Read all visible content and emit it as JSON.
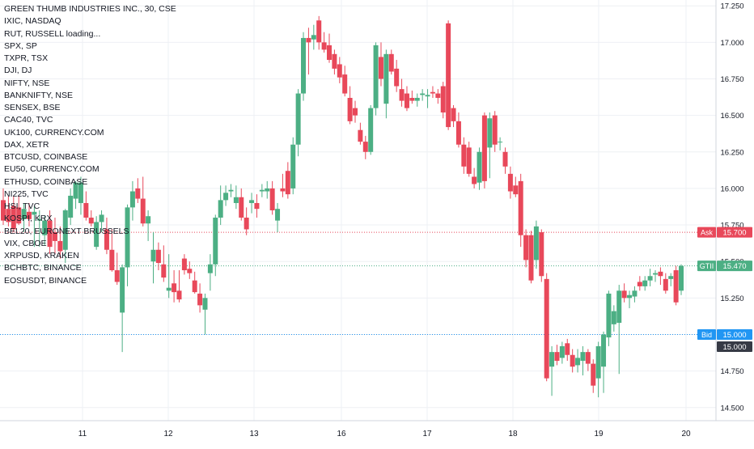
{
  "chart_data": {
    "type": "candlestick",
    "title": "GREEN THUMB INDUSTRIES INC., 30, CSE",
    "symbol": "GTII",
    "interval": "30",
    "exchange": "CSE",
    "x_ticks": [
      "11",
      "12",
      "13",
      "16",
      "17",
      "18",
      "19",
      "20"
    ],
    "y_ticks": [
      "14.500",
      "14.750",
      "15.000",
      "15.250",
      "15.500",
      "15.750",
      "16.000",
      "16.250",
      "16.500",
      "16.750",
      "17.000",
      "17.250"
    ],
    "ylim": [
      14.41,
      17.29
    ],
    "grid": true,
    "colors": {
      "up": "#4caf84",
      "down": "#e8485a",
      "ask": "#e8485a",
      "bid": "#2196f3",
      "last": "#4caf84"
    },
    "price_labels": [
      {
        "label": "Ask",
        "value": "15.700",
        "price": 15.7,
        "color": "#e8485a"
      },
      {
        "label": "GTII",
        "value": "15.470",
        "price": 15.47,
        "color": "#4caf84"
      },
      {
        "label": "Bid",
        "value": "15.000",
        "price": 15.0,
        "color": "#2196f3"
      }
    ],
    "crosshair": {
      "value": "15.000",
      "price": 15.0
    },
    "candles": [
      {
        "o": 15.92,
        "h": 16.0,
        "l": 15.75,
        "c": 15.78
      },
      {
        "o": 15.86,
        "h": 15.95,
        "l": 15.74,
        "c": 15.77
      },
      {
        "o": 15.88,
        "h": 15.95,
        "l": 15.7,
        "c": 15.72
      },
      {
        "o": 15.87,
        "h": 15.95,
        "l": 15.75,
        "c": 15.76
      },
      {
        "o": 15.79,
        "h": 15.9,
        "l": 15.7,
        "c": 15.86
      },
      {
        "o": 15.84,
        "h": 15.9,
        "l": 15.74,
        "c": 15.79
      },
      {
        "o": 15.82,
        "h": 15.88,
        "l": 15.6,
        "c": 15.84
      },
      {
        "o": 15.78,
        "h": 15.85,
        "l": 15.6,
        "c": 15.79
      },
      {
        "o": 15.68,
        "h": 15.81,
        "l": 15.61,
        "c": 15.78
      },
      {
        "o": 15.78,
        "h": 15.85,
        "l": 15.55,
        "c": 15.6
      },
      {
        "o": 15.7,
        "h": 15.8,
        "l": 15.55,
        "c": 15.64
      },
      {
        "o": 15.64,
        "h": 15.74,
        "l": 15.52,
        "c": 15.57
      },
      {
        "o": 15.58,
        "h": 15.86,
        "l": 15.49,
        "c": 15.85
      },
      {
        "o": 15.8,
        "h": 16.0,
        "l": 15.75,
        "c": 15.95
      },
      {
        "o": 15.93,
        "h": 16.05,
        "l": 15.86,
        "c": 16.04
      },
      {
        "o": 15.9,
        "h": 16.08,
        "l": 15.82,
        "c": 16.04
      },
      {
        "o": 15.9,
        "h": 15.98,
        "l": 15.78,
        "c": 15.8
      },
      {
        "o": 15.8,
        "h": 15.85,
        "l": 15.74,
        "c": 15.76
      },
      {
        "o": 15.6,
        "h": 15.81,
        "l": 15.58,
        "c": 15.77
      },
      {
        "o": 15.77,
        "h": 15.85,
        "l": 15.7,
        "c": 15.82
      },
      {
        "o": 15.72,
        "h": 15.8,
        "l": 15.55,
        "c": 15.58
      },
      {
        "o": 15.58,
        "h": 15.72,
        "l": 15.43,
        "c": 15.44
      },
      {
        "o": 15.44,
        "h": 15.56,
        "l": 15.34,
        "c": 15.36
      },
      {
        "o": 15.15,
        "h": 15.48,
        "l": 14.88,
        "c": 15.46
      },
      {
        "o": 15.46,
        "h": 15.89,
        "l": 15.33,
        "c": 15.87
      },
      {
        "o": 15.87,
        "h": 16.05,
        "l": 15.78,
        "c": 15.98
      },
      {
        "o": 16.0,
        "h": 16.07,
        "l": 15.9,
        "c": 15.93
      },
      {
        "o": 15.93,
        "h": 16.08,
        "l": 15.74,
        "c": 15.76
      },
      {
        "o": 15.76,
        "h": 15.85,
        "l": 15.64,
        "c": 15.81
      },
      {
        "o": 15.5,
        "h": 15.7,
        "l": 15.35,
        "c": 15.58
      },
      {
        "o": 15.58,
        "h": 15.63,
        "l": 15.44,
        "c": 15.49
      },
      {
        "o": 15.48,
        "h": 15.61,
        "l": 15.36,
        "c": 15.39
      },
      {
        "o": 15.3,
        "h": 15.55,
        "l": 15.25,
        "c": 15.32
      },
      {
        "o": 15.35,
        "h": 15.44,
        "l": 15.22,
        "c": 15.29
      },
      {
        "o": 15.3,
        "h": 15.44,
        "l": 15.22,
        "c": 15.24
      },
      {
        "o": 15.52,
        "h": 15.55,
        "l": 15.41,
        "c": 15.44
      },
      {
        "o": 15.45,
        "h": 15.5,
        "l": 15.38,
        "c": 15.42
      },
      {
        "o": 15.37,
        "h": 15.43,
        "l": 15.28,
        "c": 15.29
      },
      {
        "o": 15.28,
        "h": 15.35,
        "l": 15.15,
        "c": 15.2
      },
      {
        "o": 15.17,
        "h": 15.28,
        "l": 15.0,
        "c": 15.25
      },
      {
        "o": 15.42,
        "h": 15.55,
        "l": 15.3,
        "c": 15.48
      },
      {
        "o": 15.48,
        "h": 15.82,
        "l": 15.4,
        "c": 15.8
      },
      {
        "o": 15.8,
        "h": 16.02,
        "l": 15.75,
        "c": 15.92
      },
      {
        "o": 15.92,
        "h": 16.02,
        "l": 15.88,
        "c": 15.97
      },
      {
        "o": 15.98,
        "h": 16.03,
        "l": 15.94,
        "c": 15.99
      },
      {
        "o": 15.9,
        "h": 16.02,
        "l": 15.86,
        "c": 15.94
      },
      {
        "o": 15.94,
        "h": 16.0,
        "l": 15.78,
        "c": 15.8
      },
      {
        "o": 15.8,
        "h": 15.87,
        "l": 15.68,
        "c": 15.72
      },
      {
        "o": 15.9,
        "h": 15.97,
        "l": 15.83,
        "c": 15.92
      },
      {
        "o": 15.9,
        "h": 15.96,
        "l": 15.8,
        "c": 15.86
      },
      {
        "o": 15.98,
        "h": 16.03,
        "l": 15.94,
        "c": 15.99
      },
      {
        "o": 15.98,
        "h": 16.05,
        "l": 15.93,
        "c": 16.0
      },
      {
        "o": 16.0,
        "h": 16.05,
        "l": 15.82,
        "c": 15.85
      },
      {
        "o": 15.78,
        "h": 15.9,
        "l": 15.7,
        "c": 15.86
      },
      {
        "o": 16.0,
        "h": 16.1,
        "l": 15.94,
        "c": 15.98
      },
      {
        "o": 16.12,
        "h": 16.18,
        "l": 15.93,
        "c": 15.96
      },
      {
        "o": 16.0,
        "h": 16.35,
        "l": 15.96,
        "c": 16.3
      },
      {
        "o": 16.3,
        "h": 16.68,
        "l": 16.22,
        "c": 16.65
      },
      {
        "o": 16.65,
        "h": 17.07,
        "l": 16.6,
        "c": 17.03
      },
      {
        "o": 17.03,
        "h": 17.1,
        "l": 16.78,
        "c": 17.0
      },
      {
        "o": 17.02,
        "h": 17.12,
        "l": 16.95,
        "c": 17.05
      },
      {
        "o": 17.15,
        "h": 17.18,
        "l": 16.95,
        "c": 17.0
      },
      {
        "o": 17.0,
        "h": 17.07,
        "l": 16.93,
        "c": 16.95
      },
      {
        "o": 16.98,
        "h": 17.06,
        "l": 16.86,
        "c": 16.88
      },
      {
        "o": 16.92,
        "h": 16.95,
        "l": 16.78,
        "c": 16.82
      },
      {
        "o": 16.85,
        "h": 16.9,
        "l": 16.72,
        "c": 16.76
      },
      {
        "o": 16.78,
        "h": 16.84,
        "l": 16.63,
        "c": 16.65
      },
      {
        "o": 16.62,
        "h": 16.7,
        "l": 16.44,
        "c": 16.46
      },
      {
        "o": 16.55,
        "h": 16.6,
        "l": 16.45,
        "c": 16.5
      },
      {
        "o": 16.4,
        "h": 16.45,
        "l": 16.3,
        "c": 16.32
      },
      {
        "o": 16.32,
        "h": 16.36,
        "l": 16.2,
        "c": 16.25
      },
      {
        "o": 16.25,
        "h": 16.57,
        "l": 16.23,
        "c": 16.55
      },
      {
        "o": 16.55,
        "h": 17.0,
        "l": 16.5,
        "c": 16.98
      },
      {
        "o": 16.9,
        "h": 17.0,
        "l": 16.7,
        "c": 16.75
      },
      {
        "o": 16.58,
        "h": 16.95,
        "l": 16.48,
        "c": 16.92
      },
      {
        "o": 16.92,
        "h": 16.95,
        "l": 16.78,
        "c": 16.8
      },
      {
        "o": 16.82,
        "h": 16.88,
        "l": 16.66,
        "c": 16.7
      },
      {
        "o": 16.68,
        "h": 16.75,
        "l": 16.56,
        "c": 16.6
      },
      {
        "o": 16.65,
        "h": 16.7,
        "l": 16.53,
        "c": 16.55
      },
      {
        "o": 16.62,
        "h": 16.67,
        "l": 16.58,
        "c": 16.6
      },
      {
        "o": 16.6,
        "h": 16.65,
        "l": 16.56,
        "c": 16.62
      },
      {
        "o": 16.64,
        "h": 16.68,
        "l": 16.6,
        "c": 16.65
      },
      {
        "o": 16.63,
        "h": 16.68,
        "l": 16.55,
        "c": 16.64
      },
      {
        "o": 16.66,
        "h": 16.7,
        "l": 16.62,
        "c": 16.65
      },
      {
        "o": 16.65,
        "h": 16.68,
        "l": 16.58,
        "c": 16.62
      },
      {
        "o": 16.7,
        "h": 16.73,
        "l": 16.48,
        "c": 16.52
      },
      {
        "o": 17.13,
        "h": 17.15,
        "l": 16.4,
        "c": 16.42
      },
      {
        "o": 16.55,
        "h": 16.57,
        "l": 16.42,
        "c": 16.46
      },
      {
        "o": 16.46,
        "h": 16.52,
        "l": 16.28,
        "c": 16.3
      },
      {
        "o": 16.3,
        "h": 16.35,
        "l": 16.1,
        "c": 16.15
      },
      {
        "o": 16.28,
        "h": 16.32,
        "l": 16.08,
        "c": 16.1
      },
      {
        "o": 16.08,
        "h": 16.14,
        "l": 16.0,
        "c": 16.03
      },
      {
        "o": 16.04,
        "h": 16.28,
        "l": 15.99,
        "c": 16.25
      },
      {
        "o": 16.5,
        "h": 16.52,
        "l": 16.0,
        "c": 16.05
      },
      {
        "o": 16.28,
        "h": 16.52,
        "l": 16.07,
        "c": 16.48
      },
      {
        "o": 16.5,
        "h": 16.53,
        "l": 16.25,
        "c": 16.3
      },
      {
        "o": 16.32,
        "h": 16.35,
        "l": 16.26,
        "c": 16.32
      },
      {
        "o": 16.25,
        "h": 16.28,
        "l": 16.1,
        "c": 16.15
      },
      {
        "o": 16.1,
        "h": 16.15,
        "l": 15.93,
        "c": 15.98
      },
      {
        "o": 16.02,
        "h": 16.08,
        "l": 15.94,
        "c": 15.96
      },
      {
        "o": 16.05,
        "h": 16.1,
        "l": 15.6,
        "c": 15.68
      },
      {
        "o": 15.68,
        "h": 15.72,
        "l": 15.46,
        "c": 15.51
      },
      {
        "o": 15.68,
        "h": 15.71,
        "l": 15.35,
        "c": 15.37
      },
      {
        "o": 15.51,
        "h": 15.78,
        "l": 15.45,
        "c": 15.74
      },
      {
        "o": 15.7,
        "h": 15.72,
        "l": 15.36,
        "c": 15.4
      },
      {
        "o": 15.38,
        "h": 15.42,
        "l": 14.68,
        "c": 14.7
      },
      {
        "o": 14.78,
        "h": 14.92,
        "l": 14.58,
        "c": 14.88
      },
      {
        "o": 14.88,
        "h": 14.93,
        "l": 14.79,
        "c": 14.82
      },
      {
        "o": 14.84,
        "h": 14.95,
        "l": 14.8,
        "c": 14.92
      },
      {
        "o": 14.94,
        "h": 14.97,
        "l": 14.82,
        "c": 14.86
      },
      {
        "o": 14.86,
        "h": 14.9,
        "l": 14.74,
        "c": 14.78
      },
      {
        "o": 14.79,
        "h": 14.9,
        "l": 14.74,
        "c": 14.84
      },
      {
        "o": 14.82,
        "h": 14.92,
        "l": 14.72,
        "c": 14.88
      },
      {
        "o": 14.88,
        "h": 14.9,
        "l": 14.75,
        "c": 14.8
      },
      {
        "o": 14.8,
        "h": 14.83,
        "l": 14.6,
        "c": 14.65
      },
      {
        "o": 14.7,
        "h": 14.95,
        "l": 14.57,
        "c": 14.92
      },
      {
        "o": 14.78,
        "h": 15.02,
        "l": 14.6,
        "c": 15.0
      },
      {
        "o": 14.98,
        "h": 15.3,
        "l": 14.92,
        "c": 15.28
      },
      {
        "o": 15.07,
        "h": 15.2,
        "l": 15.02,
        "c": 15.16
      },
      {
        "o": 15.08,
        "h": 15.34,
        "l": 14.73,
        "c": 15.3
      },
      {
        "o": 15.3,
        "h": 15.35,
        "l": 15.22,
        "c": 15.25
      },
      {
        "o": 15.25,
        "h": 15.3,
        "l": 15.18,
        "c": 15.27
      },
      {
        "o": 15.26,
        "h": 15.33,
        "l": 15.22,
        "c": 15.3
      },
      {
        "o": 15.36,
        "h": 15.4,
        "l": 15.3,
        "c": 15.33
      },
      {
        "o": 15.33,
        "h": 15.4,
        "l": 15.3,
        "c": 15.37
      },
      {
        "o": 15.37,
        "h": 15.45,
        "l": 15.33,
        "c": 15.4
      },
      {
        "o": 15.41,
        "h": 15.44,
        "l": 15.36,
        "c": 15.42
      },
      {
        "o": 15.43,
        "h": 15.46,
        "l": 15.34,
        "c": 15.4
      },
      {
        "o": 15.38,
        "h": 15.42,
        "l": 15.28,
        "c": 15.3
      },
      {
        "o": 15.38,
        "h": 15.42,
        "l": 15.33,
        "c": 15.4
      },
      {
        "o": 15.44,
        "h": 15.47,
        "l": 15.2,
        "c": 15.22
      },
      {
        "o": 15.3,
        "h": 15.48,
        "l": 15.27,
        "c": 15.47
      }
    ]
  },
  "legend": {
    "title": "GREEN THUMB INDUSTRIES INC., 30, CSE",
    "items": [
      "IXIC, NASDAQ",
      "RUT, RUSSELL loading...",
      "SPX, SP",
      "TXPR, TSX",
      "DJI, DJ",
      "NIFTY, NSE",
      "BANKNIFTY, NSE",
      "SENSEX, BSE",
      "CAC40, TVC",
      "UK100, CURRENCY.COM",
      "DAX, XETR",
      "BTCUSD, COINBASE",
      "EU50, CURRENCY.COM",
      "ETHUSD, COINBASE",
      "NI225, TVC",
      "HSI, TVC",
      "KOSPI, KRX",
      "BEL20, EURONEXT BRUSSELS",
      "VIX, CBOE",
      "XRPUSD, KRAKEN",
      "BCHBTC, BINANCE",
      "EOSUSDT, BINANCE"
    ]
  }
}
